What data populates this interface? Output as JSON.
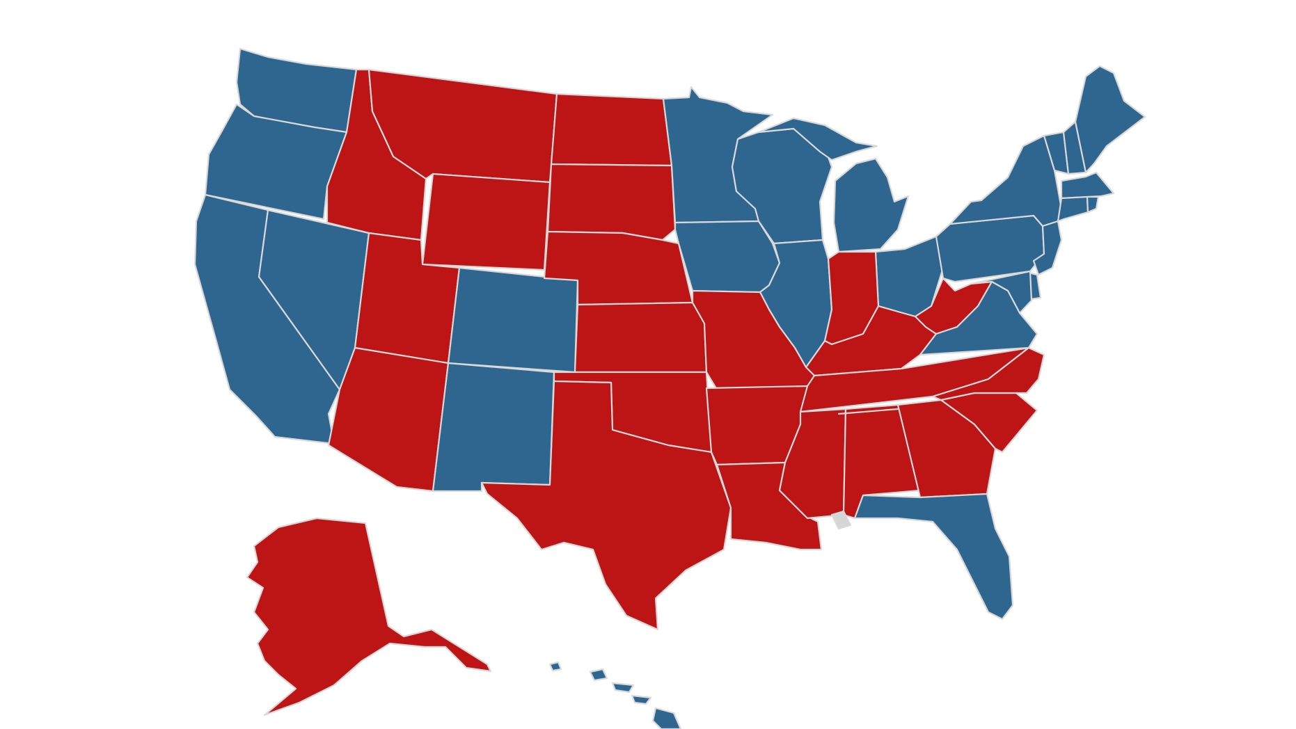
{
  "map": {
    "colors": {
      "blue": "#2f6690",
      "red": "#bd1516",
      "gray": "#d6d6d6",
      "background": "#ffffff",
      "border": "#d9d9d9"
    },
    "states": {
      "blue": [
        "WA",
        "OR",
        "CA",
        "NV",
        "CO",
        "NM",
        "MN",
        "IA",
        "WI",
        "IL",
        "MI",
        "OH",
        "PA",
        "NY",
        "VT",
        "NH",
        "ME",
        "MA",
        "CT",
        "RI",
        "NJ",
        "DE",
        "MD",
        "VA",
        "FL",
        "HI"
      ],
      "red": [
        "ID",
        "MT",
        "WY",
        "UT",
        "AZ",
        "ND",
        "SD",
        "NE",
        "KS",
        "OK",
        "TX",
        "MO",
        "AR",
        "LA",
        "IN",
        "KY",
        "WV",
        "TN",
        "MS",
        "AL",
        "GA",
        "SC",
        "NC",
        "AK"
      ],
      "gray": [
        "Alabama-Mobile"
      ]
    }
  }
}
